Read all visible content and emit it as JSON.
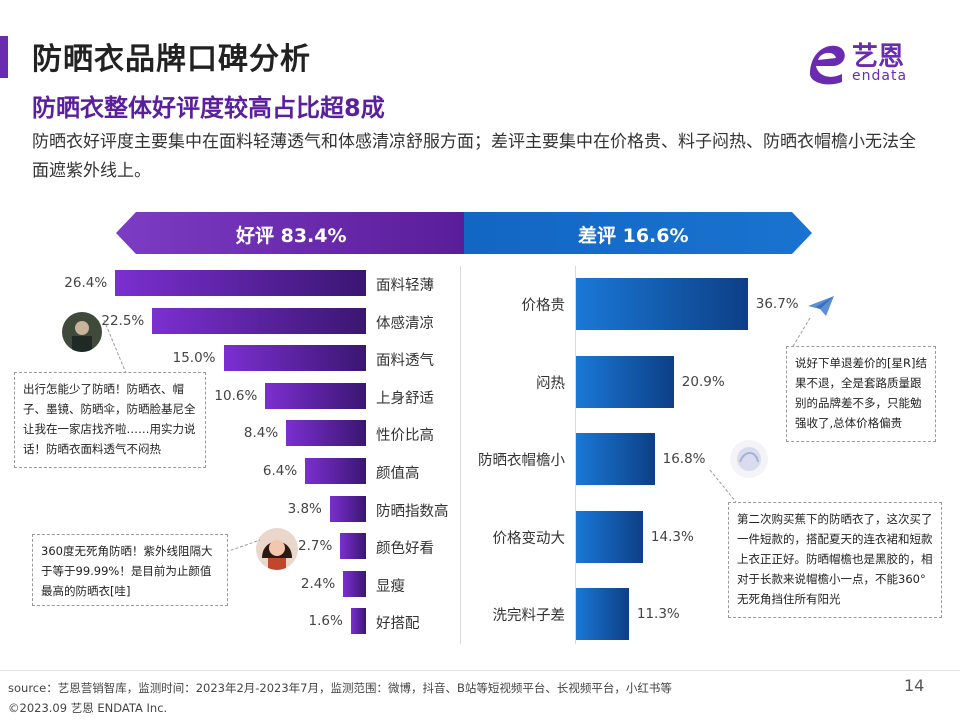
{
  "header": {
    "title": "防晒衣品牌口碑分析",
    "subtitle": "防晒衣整体好评度较高占比超8成",
    "description": "防晒衣好评度主要集中在面料轻薄透气和体感清凉舒服方面；差评主要集中在价格贵、料子闷热、防晒衣帽檐小无法全面遮紫外线上。"
  },
  "logo": {
    "name": "艺恩",
    "sub": "endata"
  },
  "chart_data": [
    {
      "type": "bar",
      "title": "好评 83.4%",
      "categories": [
        "面料轻薄",
        "体感清凉",
        "面料透气",
        "上身舒适",
        "性价比高",
        "颜值高",
        "防晒指数高",
        "颜色好看",
        "显瘦",
        "好搭配"
      ],
      "values": [
        26.4,
        22.5,
        15.0,
        10.6,
        8.4,
        6.4,
        3.8,
        2.7,
        2.4,
        1.6
      ],
      "labels": [
        "26.4%",
        "22.5%",
        "15.0%",
        "10.6%",
        "8.4%",
        "6.4%",
        "3.8%",
        "2.7%",
        "2.4%",
        "1.6%"
      ],
      "orientation": "horizontal-leftward",
      "color": "#6a2bb0"
    },
    {
      "type": "bar",
      "title": "差评 16.6%",
      "categories": [
        "价格贵",
        "闷热",
        "防晒衣帽檐小",
        "价格变动大",
        "洗完料子差"
      ],
      "values": [
        36.7,
        20.9,
        16.8,
        14.3,
        11.3
      ],
      "labels": [
        "36.7%",
        "20.9%",
        "16.8%",
        "14.3%",
        "11.3%"
      ],
      "orientation": "horizontal",
      "color": "#1565c0"
    }
  ],
  "banner": {
    "good": "好评 83.4%",
    "bad": "差评 16.6%"
  },
  "comments": {
    "c1": "出行怎能少了防晒！防晒衣、帽子、墨镜、防晒伞，防晒脸基尼全让我在一家店找齐啦……用实力说话！防晒衣面料透气不闷热",
    "c2": "360度无死角防晒！紫外线阻隔大于等于99.99%！是目前为止颜值最高的防晒衣[哇]",
    "c3": "说好下单退差价的[星R]结果不退，全是套路质量跟别的品牌差不多，只能勉强收了,总体价格偏贵",
    "c4": "第二次购买蕉下的防晒衣了，这次买了一件短款的，搭配夏天的连衣裙和短款上衣正正好。防晒帽檐也是黑胶的，相对于长款来说帽檐小一点，不能360°无死角挡住所有阳光"
  },
  "footer": {
    "source": "source：艺恩营销智库，监测时间：2023年2月-2023年7月，监测范围：微博，抖音、B站等短视频平台、长视频平台，小红书等",
    "copyright": "©2023.09 艺恩 ENDATA Inc.",
    "page": "14"
  },
  "colors": {
    "purple": "#6a2bb0",
    "blue": "#1565c0"
  }
}
